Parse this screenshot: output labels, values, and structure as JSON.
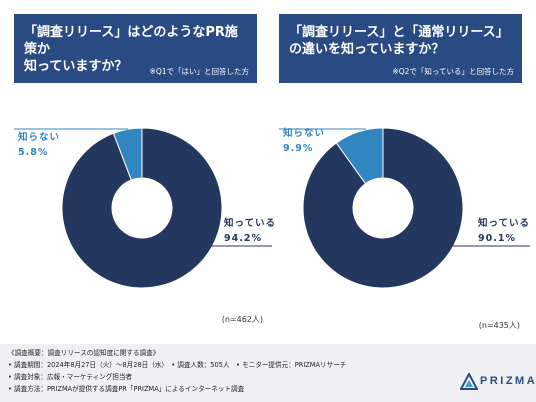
{
  "panels": [
    {
      "title": "「調査リリース」はどのようなPR施策か\n知っていますか？",
      "note": "※Q1で「はい」と回答した方"
    },
    {
      "title": "「調査リリース」と「通常リリース」\nの違いを知っていますか？",
      "note": "※Q2で「知っている」と回答した方"
    }
  ],
  "chart_data": [
    {
      "type": "pie",
      "subtype": "donut",
      "slices": [
        {
          "label": "知っている",
          "value": 94.2,
          "value_label": "94.2%",
          "color": "#24375f"
        },
        {
          "label": "知らない",
          "value": 5.8,
          "value_label": "5.8%",
          "color": "#2f86c1"
        }
      ],
      "n_label": "(n=462人)"
    },
    {
      "type": "pie",
      "subtype": "donut",
      "slices": [
        {
          "label": "知っている",
          "value": 90.1,
          "value_label": "90.1%",
          "color": "#24375f"
        },
        {
          "label": "知らない",
          "value": 9.9,
          "value_label": "9.9%",
          "color": "#2f86c1"
        }
      ],
      "n_label": "(n=435人)"
    }
  ],
  "footer": {
    "lines": [
      "《調査概要：調査リリースの認知度に関する調査》",
      "• 調査期間：2024年8月27日（火）〜8月28日（水）　• 調査人数：505人　• モニター提供元：PRIZMAリサーチ",
      "• 調査対象：広報・マーケティング担当者",
      "• 調査方法：PRIZMAが提供する調査PR「PRIZMA」によるインターネット調査"
    ]
  },
  "logo": {
    "text": "PRIZMA",
    "color": "#2a4a83",
    "accent": "#3aa0c8"
  }
}
